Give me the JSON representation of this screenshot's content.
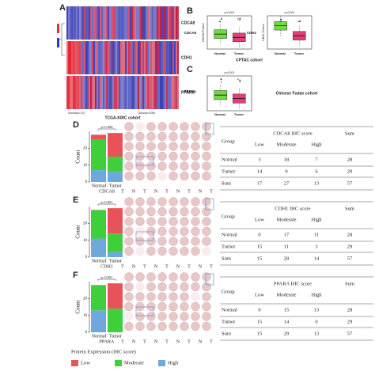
{
  "panel_a": {
    "letter": "A",
    "genes": [
      "CDCA8",
      "CDH1",
      "PPARA"
    ],
    "normal_label": "normal(n=72)",
    "tumor_label": "tumor(n=539)",
    "cohort": "TCGA-KIRC cohort"
  },
  "panel_b": {
    "letter": "B",
    "plots": [
      {
        "gene": "CDCA8",
        "p": "p<0.001",
        "y_label": "CDCA8 Protein"
      },
      {
        "gene": "CDH1",
        "p": "p<0.001",
        "y_label": "CDH1 Protein"
      }
    ],
    "groups": [
      "Normal",
      "Tumor"
    ],
    "cohort": "CPTAC cohort"
  },
  "panel_c": {
    "letter": "C",
    "gene": "PPARA",
    "p": "p<0.001",
    "y_label": "PPARA",
    "groups": [
      "Normal",
      "Tumor"
    ],
    "cohort": "Chinese Fudan cohort"
  },
  "ihc_panels": [
    {
      "letter": "D",
      "gene": "CDCA8",
      "p": "p=0.086",
      "y_label": "Count",
      "groups": [
        "Normal",
        "Tumor"
      ],
      "ylim": [
        0,
        30
      ],
      "yticks": [
        0,
        10,
        20
      ],
      "tma_labels": [
        "T",
        "N",
        "T",
        "N",
        "T",
        "N",
        "T",
        "N",
        "T"
      ],
      "table": {
        "header": [
          "Group",
          "CDCA8 IHC score",
          "Sum"
        ],
        "subheader": [
          "Low",
          "Moderate",
          "High"
        ],
        "rows": [
          [
            "Normal",
            3,
            18,
            7,
            28
          ],
          [
            "Tumor",
            14,
            9,
            6,
            29
          ],
          [
            "Sum",
            17,
            27,
            13,
            57
          ]
        ]
      }
    },
    {
      "letter": "E",
      "gene": "CDH1",
      "p": "p<0.001",
      "y_label": "Count",
      "groups": [
        "Normal",
        "Tumor"
      ],
      "ylim": [
        0,
        30
      ],
      "yticks": [
        0,
        10,
        20
      ],
      "tma_labels": [
        "T",
        "N",
        "T",
        "N",
        "T",
        "N",
        "T",
        "N",
        "T"
      ],
      "table": {
        "header": [
          "Group",
          "CDH1 IHC score",
          "Sum"
        ],
        "subheader": [
          "Low",
          "Moderate",
          "High"
        ],
        "rows": [
          [
            "Normal",
            0,
            17,
            11,
            28
          ],
          [
            "Tumor",
            15,
            11,
            3,
            29
          ],
          [
            "Sum",
            15,
            28,
            14,
            57
          ]
        ]
      }
    },
    {
      "letter": "F",
      "gene": "PPARA",
      "p": "p<0.001",
      "y_label": "Count",
      "groups": [
        "Normal",
        "Tumor"
      ],
      "ylim": [
        0,
        30
      ],
      "yticks": [
        0,
        10,
        20
      ],
      "tma_labels": [
        "T",
        "N",
        "T",
        "N",
        "T",
        "N",
        "T",
        "N",
        "T"
      ],
      "table": {
        "header": [
          "Group",
          "PPARA IHC score",
          "Sum"
        ],
        "subheader": [
          "Low",
          "Moderate",
          "High"
        ],
        "rows": [
          [
            "Normal",
            0,
            15,
            13,
            28
          ],
          [
            "Tumor",
            15,
            14,
            0,
            29
          ],
          [
            "Sum",
            15,
            29,
            13,
            57
          ]
        ]
      }
    }
  ],
  "legend": {
    "title": "Protein Expression (IHC score)",
    "items": [
      "Low",
      "Moderate",
      "High"
    ],
    "colors": [
      "#e8535a",
      "#3fcf3a",
      "#6fa8dc"
    ]
  }
}
